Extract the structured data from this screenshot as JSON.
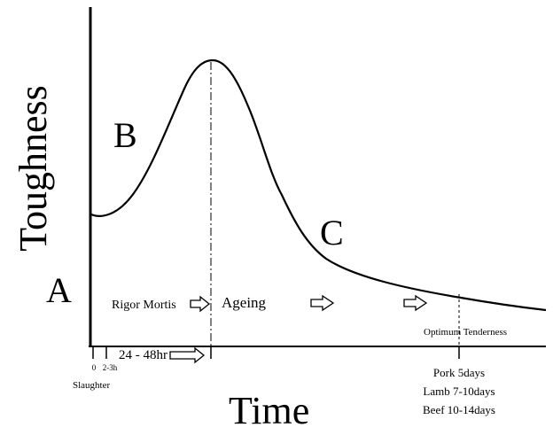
{
  "axes": {
    "y_label": "Toughness",
    "x_label": "Time"
  },
  "region_labels": {
    "a": "A",
    "b": "B",
    "c": "C"
  },
  "phases": {
    "rigor": "Rigor Mortis",
    "ageing": "Ageing",
    "optimum": "Optimum Tenderness"
  },
  "time_marks": {
    "zero": "0",
    "early": "2-3h",
    "slaughter": "Slaughter",
    "rigor_window": "24 - 48hr"
  },
  "optimum_times": [
    "Pork 5days",
    "Lamb 7-10days",
    "Beef 10-14days"
  ],
  "colors": {
    "ink": "#000000",
    "background": "#ffffff"
  }
}
